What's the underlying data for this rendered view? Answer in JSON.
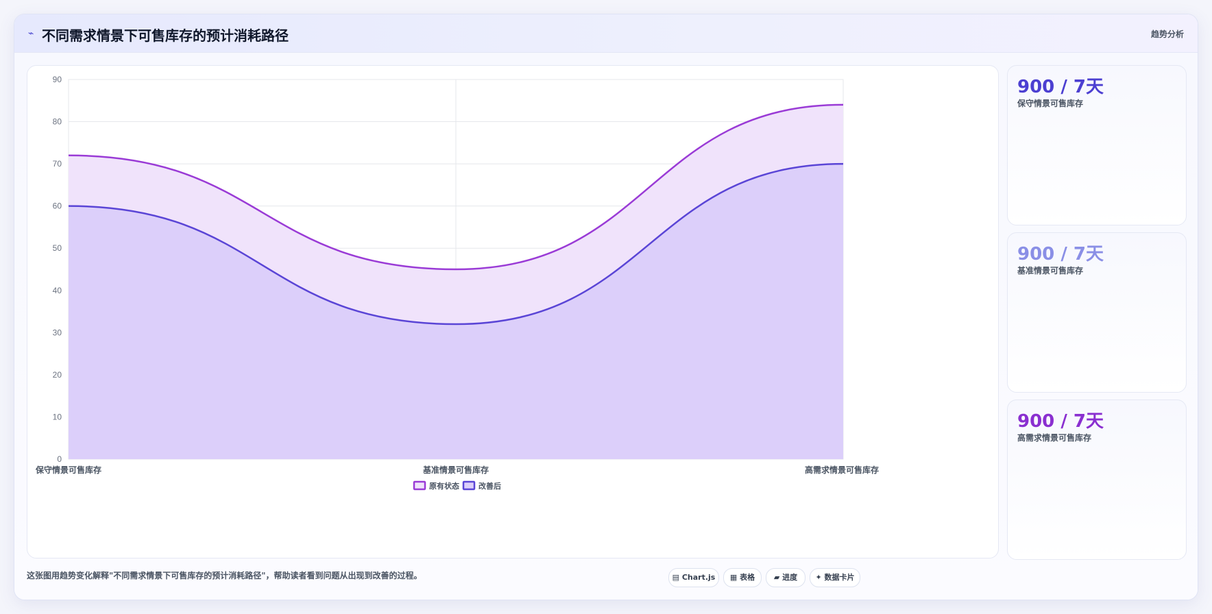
{
  "header": {
    "icon": "trend-line-icon",
    "title": "不同需求情景下可售库存的预计消耗路径",
    "tag": "趋势分析"
  },
  "kpis": [
    {
      "value": "900 / 7天",
      "label": "保守情景可售库存",
      "color": "#4c3fd1"
    },
    {
      "value": "900 / 7天",
      "label": "基准情景可售库存",
      "color": "#8a8fe6"
    },
    {
      "value": "900 / 7天",
      "label": "高需求情景可售库存",
      "color": "#8a2fd0"
    }
  ],
  "caption": "这张图用趋势变化解释\"不同需求情景下可售库存的预计消耗路径\"，帮助读者看到问题从出现到改善的过程。",
  "chips": [
    "▤ Chart.js",
    "▦ 表格",
    "▰ 进度",
    "✦ 数据卡片"
  ],
  "chart_data": {
    "type": "area",
    "categories": [
      "保守情景可售库存",
      "基准情景可售库存",
      "高需求情景可售库存"
    ],
    "series": [
      {
        "name": "原有状态",
        "values": [
          72,
          45,
          84
        ],
        "color": "#9a3bd6",
        "fill": "#f0e3fb"
      },
      {
        "name": "改善后",
        "values": [
          60,
          32,
          70
        ],
        "color": "#5a45d6",
        "fill": "#dccffa"
      }
    ],
    "ylim": [
      0,
      90
    ],
    "yticks": [
      0,
      10,
      20,
      30,
      40,
      50,
      60,
      70,
      80,
      90
    ],
    "grid": true,
    "legend": "bottom"
  }
}
